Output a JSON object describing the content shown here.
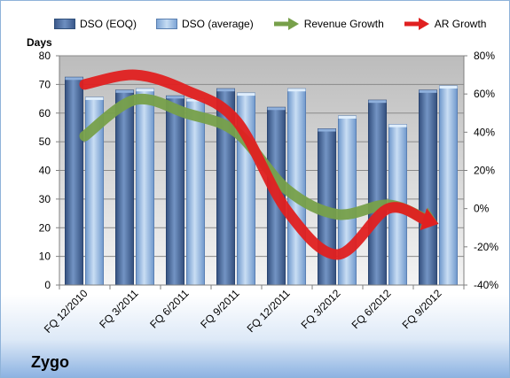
{
  "company": "Zygo",
  "chart_data": {
    "type": "bar",
    "categories": [
      "FQ 12/2010",
      "FQ 3/2011",
      "FQ 6/2011",
      "FQ 9/2011",
      "FQ 12/2011",
      "FQ 3/2012",
      "FQ 6/2012",
      "FQ 9/2012"
    ],
    "series": [
      {
        "name": "DSO (EOQ)",
        "axis": "left",
        "mark": "bar",
        "color": "#4f6e9f",
        "values": [
          72.5,
          68,
          66,
          68.5,
          62,
          54.5,
          64.5,
          68
        ]
      },
      {
        "name": "DSO (average)",
        "axis": "left",
        "mark": "bar",
        "color": "#9ec1e6",
        "values": [
          65.5,
          68.5,
          65,
          67,
          68.5,
          59,
          56,
          69.5
        ]
      },
      {
        "name": "Revenue Growth",
        "axis": "right",
        "mark": "arrow-line",
        "color": "#77a04a",
        "values": [
          38,
          57,
          50,
          40,
          10,
          -3,
          2,
          -8
        ]
      },
      {
        "name": "AR Growth",
        "axis": "right",
        "mark": "arrow-line",
        "color": "#e02020",
        "values": [
          65,
          70,
          62,
          46,
          -1,
          -24,
          0,
          -8
        ]
      }
    ],
    "ylabel": "Days",
    "ylim": [
      0,
      80
    ],
    "yticks": [
      "0",
      "10",
      "20",
      "30",
      "40",
      "50",
      "60",
      "70",
      "80"
    ],
    "y2lim": [
      -40,
      80
    ],
    "y2ticks": [
      "-40%",
      "-20%",
      "0%",
      "20%",
      "40%",
      "60%",
      "80%"
    ],
    "grid": true,
    "legend_position": "top"
  }
}
